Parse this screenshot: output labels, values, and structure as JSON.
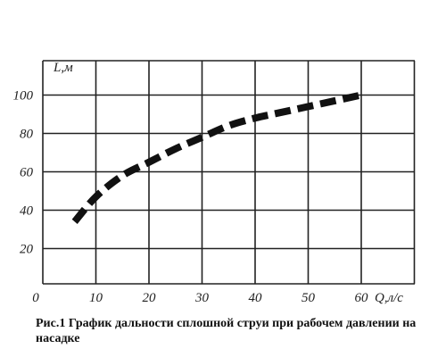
{
  "caption": "Рис.1 График дальности сплошной струи при рабочем давлении на насадке",
  "chart_data": {
    "type": "line",
    "title": "",
    "xlabel": "Q,л/с",
    "ylabel": "L,м",
    "xlim": [
      0,
      60
    ],
    "ylim": [
      20,
      120
    ],
    "x_ticks": [
      "0",
      "10",
      "20",
      "30",
      "40",
      "50",
      "60"
    ],
    "y_ticks": [
      "20",
      "40",
      "60",
      "80",
      "100"
    ],
    "grid": true,
    "series": [
      {
        "x": [
          6,
          10,
          15,
          20,
          25,
          30,
          35,
          40,
          45,
          50,
          55,
          60
        ],
        "y": [
          34,
          47,
          58,
          65,
          72,
          78,
          84,
          88,
          91,
          94,
          97,
          100
        ]
      }
    ]
  }
}
